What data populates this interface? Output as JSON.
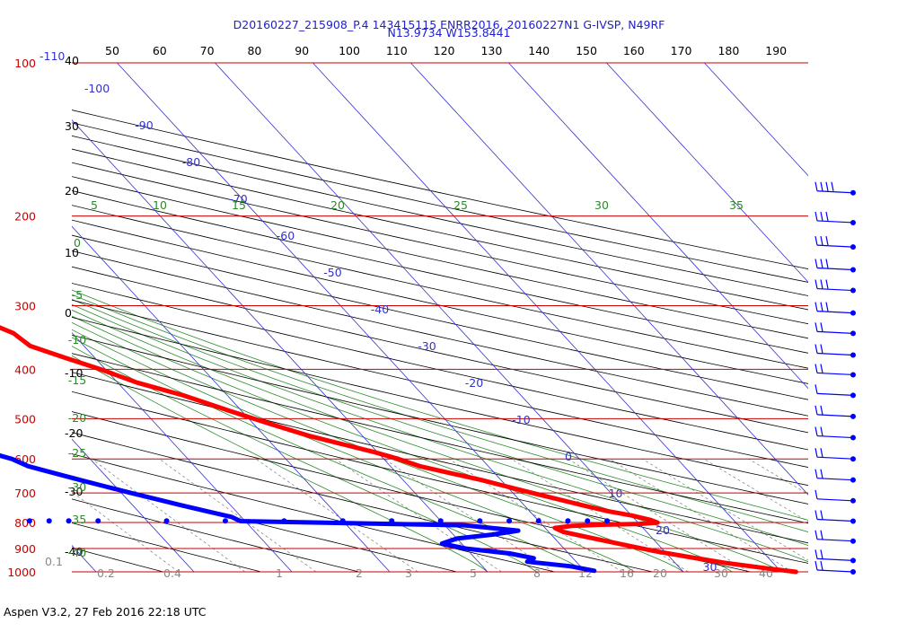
{
  "header": {
    "line1": "D20160227_215908_P.4 143415115 ENRR2016, 20160227N1 G-IVSP, N49RF",
    "line2": "N13.9734 W153.8441"
  },
  "footer": {
    "text": "Aspen V3.2, 27 Feb 2016  22:18 UTC"
  },
  "chart_data": {
    "type": "skew-t",
    "title": "D20160227_215908_P.4 143415115 ENRR2016, 20160227N1 G-IVSP, N49RF",
    "subtitle": "N13.9734 W153.8441",
    "pressure_levels": [
      100,
      200,
      300,
      400,
      500,
      600,
      700,
      800,
      900,
      1000
    ],
    "pressure_range": [
      100,
      1000
    ],
    "extra_pressure_tick": "-110",
    "theta_labels": [
      50,
      60,
      70,
      80,
      90,
      100,
      110,
      120,
      130,
      140,
      150,
      160,
      170,
      180,
      190
    ],
    "dry_adiabat_labels": [
      40,
      30,
      20,
      10,
      0,
      -10,
      -20,
      -30,
      -40
    ],
    "isotherm_labels": [
      "-100",
      "-90",
      "-80",
      "-70",
      "-60",
      "-50",
      "-40",
      "-30",
      "-20",
      "-10",
      "0",
      "10",
      "20",
      "30"
    ],
    "moist_adiabat_labels": [
      "5",
      "10",
      "15",
      "20",
      "25",
      "30",
      "35"
    ],
    "moist_left_labels": [
      "0",
      "-5",
      "-10",
      "-15",
      "-20",
      "-25",
      "-30",
      "-35",
      "-40"
    ],
    "mixing_ratio_labels": [
      "0.1",
      "0.2",
      "0.4",
      "1",
      "2",
      "3",
      "5",
      "8",
      "12",
      "16",
      "20",
      "30",
      "40"
    ],
    "series": [
      {
        "color": "#ff0000",
        "points": [
          {
            "p": 180,
            "t": -58
          },
          {
            "p": 206,
            "t": -51
          },
          {
            "p": 220,
            "t": -49
          },
          {
            "p": 240,
            "t": -46
          },
          {
            "p": 260,
            "t": -43.5
          },
          {
            "p": 280,
            "t": -41
          },
          {
            "p": 300,
            "t": -38.5
          },
          {
            "p": 320,
            "t": -38
          },
          {
            "p": 340,
            "t": -36
          },
          {
            "p": 360,
            "t": -35.5
          },
          {
            "p": 380,
            "t": -33
          },
          {
            "p": 400,
            "t": -30.5
          },
          {
            "p": 425,
            "t": -28
          },
          {
            "p": 450,
            "t": -24.5
          },
          {
            "p": 480,
            "t": -21.5
          },
          {
            "p": 510,
            "t": -18.5
          },
          {
            "p": 540,
            "t": -15.5
          },
          {
            "p": 560,
            "t": -13
          },
          {
            "p": 580,
            "t": -10.5
          },
          {
            "p": 600,
            "t": -8.5
          },
          {
            "p": 620,
            "t": -7
          },
          {
            "p": 640,
            "t": -4.5
          },
          {
            "p": 660,
            "t": -2
          },
          {
            "p": 680,
            "t": 0
          },
          {
            "p": 700,
            "t": 2
          },
          {
            "p": 720,
            "t": 4
          },
          {
            "p": 740,
            "t": 6
          },
          {
            "p": 760,
            "t": 8
          },
          {
            "p": 775,
            "t": 10
          },
          {
            "p": 790,
            "t": 11.5
          },
          {
            "p": 800,
            "t": 12
          },
          {
            "p": 805,
            "t": 10
          },
          {
            "p": 808,
            "t": 6
          },
          {
            "p": 812,
            "t": 3
          },
          {
            "p": 820,
            "t": 1
          },
          {
            "p": 835,
            "t": 1.5
          },
          {
            "p": 850,
            "t": 3
          },
          {
            "p": 870,
            "t": 5
          },
          {
            "p": 890,
            "t": 7
          },
          {
            "p": 910,
            "t": 9
          },
          {
            "p": 935,
            "t": 12
          },
          {
            "p": 960,
            "t": 15
          },
          {
            "p": 985,
            "t": 19
          },
          {
            "p": 1000,
            "t": 21.5
          }
        ]
      },
      {
        "color": "#0000ff",
        "points": [
          {
            "p": 255,
            "t": -88
          },
          {
            "p": 280,
            "t": -85
          },
          {
            "p": 300,
            "t": -82
          },
          {
            "p": 320,
            "t": -79
          },
          {
            "p": 340,
            "t": -77
          },
          {
            "p": 360,
            "t": -76
          },
          {
            "p": 380,
            "t": -75
          },
          {
            "p": 400,
            "t": -73
          },
          {
            "p": 420,
            "t": -70
          },
          {
            "p": 440,
            "t": -67
          },
          {
            "p": 460,
            "t": -64
          },
          {
            "p": 480,
            "t": -61
          },
          {
            "p": 500,
            "t": -58
          },
          {
            "p": 520,
            "t": -55
          },
          {
            "p": 540,
            "t": -53.5
          },
          {
            "p": 560,
            "t": -52
          },
          {
            "p": 580,
            "t": -50
          },
          {
            "p": 600,
            "t": -48
          },
          {
            "p": 620,
            "t": -47
          },
          {
            "p": 640,
            "t": -45
          },
          {
            "p": 660,
            "t": -43
          },
          {
            "p": 680,
            "t": -41
          },
          {
            "p": 700,
            "t": -39
          },
          {
            "p": 720,
            "t": -37
          },
          {
            "p": 740,
            "t": -35
          },
          {
            "p": 760,
            "t": -33
          },
          {
            "p": 780,
            "t": -31
          },
          {
            "p": 795,
            "t": -30.5
          },
          {
            "p": 810,
            "t": -8
          },
          {
            "p": 830,
            "t": -3
          },
          {
            "p": 845,
            "t": -6
          },
          {
            "p": 860,
            "t": -10
          },
          {
            "p": 880,
            "t": -12
          },
          {
            "p": 900,
            "t": -10
          },
          {
            "p": 920,
            "t": -6
          },
          {
            "p": 940,
            "t": -4
          },
          {
            "p": 955,
            "t": -5
          },
          {
            "p": 965,
            "t": -3
          },
          {
            "p": 975,
            "t": -1
          },
          {
            "p": 985,
            "t": 0
          },
          {
            "p": 995,
            "t": 1
          }
        ]
      }
    ],
    "dewpoint_dropouts": [
      {
        "p": 794,
        "t": -59
      },
      {
        "p": 794,
        "t": -56
      },
      {
        "p": 794,
        "t": -52
      },
      {
        "p": 794,
        "t": -50
      },
      {
        "p": 794,
        "t": -48
      },
      {
        "p": 794,
        "t": -45
      },
      {
        "p": 794,
        "t": -38
      },
      {
        "p": 794,
        "t": -32
      },
      {
        "p": 794,
        "t": -26
      },
      {
        "p": 794,
        "t": -20
      },
      {
        "p": 794,
        "t": -15
      },
      {
        "p": 794,
        "t": -10
      },
      {
        "p": 794,
        "t": -6
      },
      {
        "p": 794,
        "t": -3
      },
      {
        "p": 794,
        "t": 0
      },
      {
        "p": 794,
        "t": 3
      },
      {
        "p": 794,
        "t": 5
      },
      {
        "p": 794,
        "t": 7
      }
    ],
    "wind_barbs": [
      {
        "p": 180,
        "flags": 4
      },
      {
        "p": 206,
        "flags": 3
      },
      {
        "p": 230,
        "flags": 3
      },
      {
        "p": 255,
        "flags": 3
      },
      {
        "p": 280,
        "flags": 3
      },
      {
        "p": 310,
        "flags": 3
      },
      {
        "p": 340,
        "flags": 2
      },
      {
        "p": 375,
        "flags": 2
      },
      {
        "p": 410,
        "flags": 2
      },
      {
        "p": 450,
        "flags": 1
      },
      {
        "p": 495,
        "flags": 2
      },
      {
        "p": 545,
        "flags": 2
      },
      {
        "p": 600,
        "flags": 2
      },
      {
        "p": 660,
        "flags": 2
      },
      {
        "p": 725,
        "flags": 1
      },
      {
        "p": 795,
        "flags": 2
      },
      {
        "p": 870,
        "flags": 2
      },
      {
        "p": 950,
        "flags": 2
      },
      {
        "p": 1000,
        "flags": 2
      }
    ],
    "grid": true,
    "colors": {
      "isobar": "#cc0000",
      "isotherm": "#3333cc",
      "dry_adiabat": "#000000",
      "moist_adiabat": "#2a8a2a",
      "mixing_ratio": "#7a7a7a",
      "header_text": "#2020d0"
    }
  }
}
